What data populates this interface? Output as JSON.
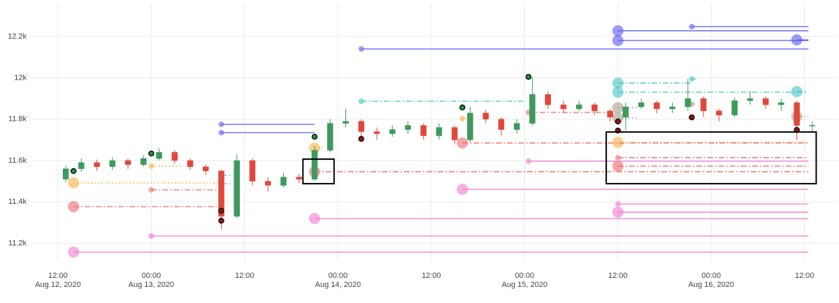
{
  "chart_data": {
    "type": "candlestick",
    "xlim": [
      "2020-08-12T08:30",
      "2020-08-16T16:15"
    ],
    "ylim": [
      11110,
      12360
    ],
    "grid": true,
    "up_color": "#3d9a5c",
    "down_color": "#e0483c",
    "xticks": [
      {
        "value": "2020-08-12T12:00",
        "label": [
          "12:00",
          "Aug 12, 2020"
        ]
      },
      {
        "value": "2020-08-13T00:00",
        "label": [
          "00:00",
          "Aug 13, 2020"
        ]
      },
      {
        "value": "2020-08-13T12:00",
        "label": [
          "12:00"
        ]
      },
      {
        "value": "2020-08-14T00:00",
        "label": [
          "00:00",
          "Aug 14, 2020"
        ]
      },
      {
        "value": "2020-08-14T12:00",
        "label": [
          "12:00"
        ]
      },
      {
        "value": "2020-08-15T00:00",
        "label": [
          "00:00",
          "Aug 15, 2020"
        ]
      },
      {
        "value": "2020-08-15T12:00",
        "label": [
          "12:00"
        ]
      },
      {
        "value": "2020-08-16T00:00",
        "label": [
          "00:00",
          "Aug 16, 2020"
        ]
      },
      {
        "value": "2020-08-16T12:00",
        "label": [
          "12:00"
        ]
      }
    ],
    "yticks": [
      {
        "value": 11200,
        "label": "11.2k"
      },
      {
        "value": 11400,
        "label": "11.4k"
      },
      {
        "value": 11600,
        "label": "11.6k"
      },
      {
        "value": 11800,
        "label": "11.8k"
      },
      {
        "value": 12000,
        "label": "12k"
      },
      {
        "value": 12200,
        "label": "12.2k"
      }
    ],
    "x": [
      "2020-08-12T13:00",
      "2020-08-12T15:00",
      "2020-08-12T17:00",
      "2020-08-12T19:00",
      "2020-08-12T21:00",
      "2020-08-12T23:00",
      "2020-08-13T01:00",
      "2020-08-13T03:00",
      "2020-08-13T05:00",
      "2020-08-13T07:00",
      "2020-08-13T09:00",
      "2020-08-13T11:00",
      "2020-08-13T13:00",
      "2020-08-13T15:00",
      "2020-08-13T17:00",
      "2020-08-13T19:00",
      "2020-08-13T21:00",
      "2020-08-13T23:00",
      "2020-08-14T01:00",
      "2020-08-14T03:00",
      "2020-08-14T05:00",
      "2020-08-14T07:00",
      "2020-08-14T09:00",
      "2020-08-14T11:00",
      "2020-08-14T13:00",
      "2020-08-14T15:00",
      "2020-08-14T17:00",
      "2020-08-14T19:00",
      "2020-08-14T21:00",
      "2020-08-14T23:00",
      "2020-08-15T01:00",
      "2020-08-15T03:00",
      "2020-08-15T05:00",
      "2020-08-15T07:00",
      "2020-08-15T09:00",
      "2020-08-15T11:00",
      "2020-08-15T13:00",
      "2020-08-15T15:00",
      "2020-08-15T17:00",
      "2020-08-15T19:00",
      "2020-08-15T21:00",
      "2020-08-15T23:00",
      "2020-08-16T01:00",
      "2020-08-16T03:00",
      "2020-08-16T05:00",
      "2020-08-16T07:00",
      "2020-08-16T09:00",
      "2020-08-16T11:00",
      "2020-08-16T13:00"
    ],
    "open": [
      11510,
      11560,
      11590,
      11570,
      11600,
      11580,
      11610,
      11640,
      11600,
      11570,
      11550,
      11330,
      11600,
      11500,
      11480,
      11520,
      11510,
      11650,
      11780,
      11790,
      11740,
      11730,
      11750,
      11770,
      11720,
      11760,
      11700,
      11830,
      11800,
      11750,
      11780,
      11920,
      11870,
      11850,
      11870,
      11840,
      11810,
      11860,
      11880,
      11850,
      11860,
      11900,
      11840,
      11820,
      11890,
      11900,
      11870,
      11880,
      11770
    ],
    "high": [
      11575,
      11610,
      11605,
      11615,
      11610,
      11625,
      11660,
      11650,
      11610,
      11580,
      11555,
      11630,
      11610,
      11520,
      11540,
      11535,
      11670,
      11800,
      11850,
      11800,
      11760,
      11770,
      11790,
      11780,
      11780,
      11770,
      11860,
      11845,
      11810,
      11800,
      12005,
      11935,
      11890,
      11890,
      11880,
      11850,
      11880,
      11900,
      11890,
      11880,
      11995,
      11910,
      11850,
      11905,
      11935,
      11910,
      11900,
      11890,
      11790
    ],
    "low": [
      11495,
      11545,
      11550,
      11555,
      11560,
      11570,
      11600,
      11585,
      11555,
      11530,
      11270,
      11320,
      11480,
      11450,
      11470,
      11490,
      11500,
      11640,
      11760,
      11720,
      11700,
      11715,
      11730,
      11700,
      11700,
      11680,
      11690,
      11780,
      11720,
      11730,
      11770,
      11850,
      11830,
      11840,
      11820,
      11790,
      11745,
      11850,
      11830,
      11830,
      11840,
      11810,
      11790,
      11810,
      11870,
      11850,
      11840,
      11700,
      11740
    ],
    "close": [
      11560,
      11590,
      11570,
      11600,
      11580,
      11610,
      11640,
      11600,
      11570,
      11550,
      11330,
      11600,
      11500,
      11480,
      11520,
      11510,
      11650,
      11780,
      11790,
      11740,
      11730,
      11750,
      11770,
      11720,
      11760,
      11700,
      11830,
      11800,
      11750,
      11780,
      11920,
      11870,
      11850,
      11870,
      11840,
      11810,
      11860,
      11880,
      11850,
      11860,
      11900,
      11840,
      11820,
      11890,
      11900,
      11870,
      11880,
      11770,
      11770
    ],
    "levels": [
      {
        "color": "#5a5af0",
        "dash": "solid",
        "marker": "small",
        "start": "2020-08-14T03:00",
        "end": "2020-08-16T12:30",
        "y": 12140
      },
      {
        "color": "#5a5af0",
        "dash": "solid",
        "marker": "small",
        "start": "2020-08-13T09:00",
        "end": "2020-08-13T21:00",
        "y": 11775
      },
      {
        "color": "#5a5af0",
        "dash": "solid",
        "marker": "small",
        "start": "2020-08-13T09:00",
        "end": "2020-08-13T21:00",
        "y": 11735
      },
      {
        "color": "#5a5af0",
        "dash": "solid",
        "marker": "large",
        "start": "2020-08-15T12:00",
        "end": "2020-08-16T12:30",
        "y": 12228
      },
      {
        "color": "#5a5af0",
        "dash": "solid",
        "marker": "large",
        "start": "2020-08-15T12:00",
        "end": "2020-08-16T12:30",
        "y": 12181
      },
      {
        "color": "#5a5af0",
        "dash": "solid",
        "marker": "small",
        "start": "2020-08-15T21:30",
        "end": "2020-08-16T12:30",
        "y": 12248
      },
      {
        "color": "#5a5af0",
        "dash": "solid",
        "marker": "large",
        "start": "2020-08-16T11:00",
        "end": "2020-08-16T12:30",
        "y": 12184
      },
      {
        "color": "#45c4c4",
        "dash": "dashdot",
        "marker": "small",
        "start": "2020-08-14T03:00",
        "end": "2020-08-15T00:00",
        "y": 11887
      },
      {
        "color": "#45c4c4",
        "dash": "dashdot",
        "marker": "small",
        "start": "2020-08-13T09:00",
        "end": "2020-08-13T10:30",
        "y": 11529
      },
      {
        "color": "#45c4c4",
        "dash": "dashdot",
        "marker": "small",
        "start": "2020-08-13T09:00",
        "end": "2020-08-13T10:30",
        "y": 11488
      },
      {
        "color": "#45c4c4",
        "dash": "dashdot",
        "marker": "large",
        "start": "2020-08-15T12:00",
        "end": "2020-08-15T21:30",
        "y": 11975
      },
      {
        "color": "#45c4c4",
        "dash": "dashdot",
        "marker": "large",
        "start": "2020-08-15T12:00",
        "end": "2020-08-16T12:30",
        "y": 11931
      },
      {
        "color": "#45c4c4",
        "dash": "dashdot",
        "marker": "small",
        "start": "2020-08-15T21:30",
        "end": "2020-08-15T22:00",
        "y": 11995
      },
      {
        "color": "#45c4c4",
        "dash": "dashdot",
        "marker": "large",
        "start": "2020-08-16T11:00",
        "end": "2020-08-16T12:30",
        "y": 11934
      },
      {
        "color": "#a8a08a",
        "dash": "dot",
        "marker": "large",
        "start": "2020-08-15T12:00",
        "end": "2020-08-15T14:30",
        "y": 11856
      },
      {
        "color": "#a8a08a",
        "dash": "dot",
        "marker": "large",
        "start": "2020-08-15T12:00",
        "end": "2020-08-15T14:30",
        "y": 11806
      },
      {
        "color": "#a8a08a",
        "dash": "dot",
        "marker": "small",
        "start": "2020-08-15T21:30",
        "end": "2020-08-15T22:00",
        "y": 11873
      },
      {
        "color": "#a8a08a",
        "dash": "dot",
        "marker": "large",
        "start": "2020-08-16T11:00",
        "end": "2020-08-16T12:30",
        "y": 11813
      },
      {
        "color": "#f5b041",
        "dash": "dot",
        "marker": "large",
        "start": "2020-08-12T14:00",
        "end": "2020-08-13T09:00",
        "y": 11492
      },
      {
        "color": "#f5b041",
        "dash": "dot",
        "marker": "small",
        "start": "2020-08-13T00:00",
        "end": "2020-08-13T04:00",
        "y": 11573
      },
      {
        "color": "#f5b041",
        "dash": "dot",
        "marker": "large",
        "start": "2020-08-13T21:00",
        "end": "2020-08-13T22:00",
        "y": 11660
      },
      {
        "color": "#f5b041",
        "dash": "dot",
        "marker": "small",
        "start": "2020-08-14T16:00",
        "end": "2020-08-14T17:00",
        "y": 11803
      },
      {
        "color": "#f5b041",
        "dash": "dot",
        "marker": "large",
        "start": "2020-08-15T12:00",
        "end": "2020-08-16T12:30",
        "y": 11688
      },
      {
        "color": "#f06a6a",
        "dash": "dashdot",
        "marker": "large",
        "start": "2020-08-12T14:00",
        "end": "2020-08-13T09:00",
        "y": 11377
      },
      {
        "color": "#f06a6a",
        "dash": "dashdot",
        "marker": "small",
        "start": "2020-08-13T00:00",
        "end": "2020-08-13T09:00",
        "y": 11458
      },
      {
        "color": "#f06a6a",
        "dash": "dashdot",
        "marker": "large",
        "start": "2020-08-13T21:00",
        "end": "2020-08-16T12:30",
        "y": 11546
      },
      {
        "color": "#f06a6a",
        "dash": "dashdot",
        "marker": "large",
        "start": "2020-08-14T16:00",
        "end": "2020-08-16T12:30",
        "y": 11685
      },
      {
        "color": "#f06a6a",
        "dash": "dashdot",
        "marker": "small",
        "start": "2020-08-15T00:30",
        "end": "2020-08-15T12:00",
        "y": 11833
      },
      {
        "color": "#f06a6a",
        "dash": "dashdot",
        "marker": "small",
        "start": "2020-08-15T12:00",
        "end": "2020-08-16T12:30",
        "y": 11614
      },
      {
        "color": "#f06a6a",
        "dash": "dashdot",
        "marker": "large",
        "start": "2020-08-15T12:00",
        "end": "2020-08-16T12:30",
        "y": 11573
      },
      {
        "color": "#f07ad0",
        "dash": "solid",
        "marker": "large",
        "start": "2020-08-12T14:00",
        "end": "2020-08-16T12:30",
        "y": 11157
      },
      {
        "color": "#f07ad0",
        "dash": "solid",
        "marker": "small",
        "start": "2020-08-13T00:00",
        "end": "2020-08-16T12:30",
        "y": 11235
      },
      {
        "color": "#f07ad0",
        "dash": "solid",
        "marker": "large",
        "start": "2020-08-13T21:00",
        "end": "2020-08-16T12:30",
        "y": 11319
      },
      {
        "color": "#f07ad0",
        "dash": "solid",
        "marker": "large",
        "start": "2020-08-14T16:00",
        "end": "2020-08-16T12:30",
        "y": 11461
      },
      {
        "color": "#f07ad0",
        "dash": "solid",
        "marker": "small",
        "start": "2020-08-15T00:30",
        "end": "2020-08-16T12:30",
        "y": 11597
      },
      {
        "color": "#f07ad0",
        "dash": "solid",
        "marker": "small",
        "start": "2020-08-15T12:00",
        "end": "2020-08-16T12:30",
        "y": 11390
      },
      {
        "color": "#f07ad0",
        "dash": "solid",
        "marker": "large",
        "start": "2020-08-15T12:00",
        "end": "2020-08-16T12:30",
        "y": 11350
      }
    ],
    "pivots": [
      {
        "color": "#1f9a3a",
        "x": [
          "2020-08-12T14:00",
          "2020-08-13T00:00",
          "2020-08-13T21:00",
          "2020-08-14T16:00",
          "2020-08-15T00:30"
        ],
        "values": [
          11549,
          11634,
          11715,
          11857,
          12005
        ]
      },
      {
        "color": "#a01010",
        "x": [
          "2020-08-13T09:00",
          "2020-08-13T09:00",
          "2020-08-14T03:00",
          "2020-08-15T12:00",
          "2020-08-15T12:00",
          "2020-08-15T21:30",
          "2020-08-16T11:00"
        ],
        "values": [
          11357,
          11309,
          11705,
          11789,
          11745,
          11809,
          11748
        ]
      }
    ],
    "shapes": [
      {
        "x0": "2020-08-13T19:30",
        "x1": "2020-08-13T23:30",
        "y0": 11488,
        "y1": 11607
      },
      {
        "x0": "2020-08-15T10:30",
        "x1": "2020-08-16T13:30",
        "y0": 11488,
        "y1": 11738
      }
    ]
  }
}
